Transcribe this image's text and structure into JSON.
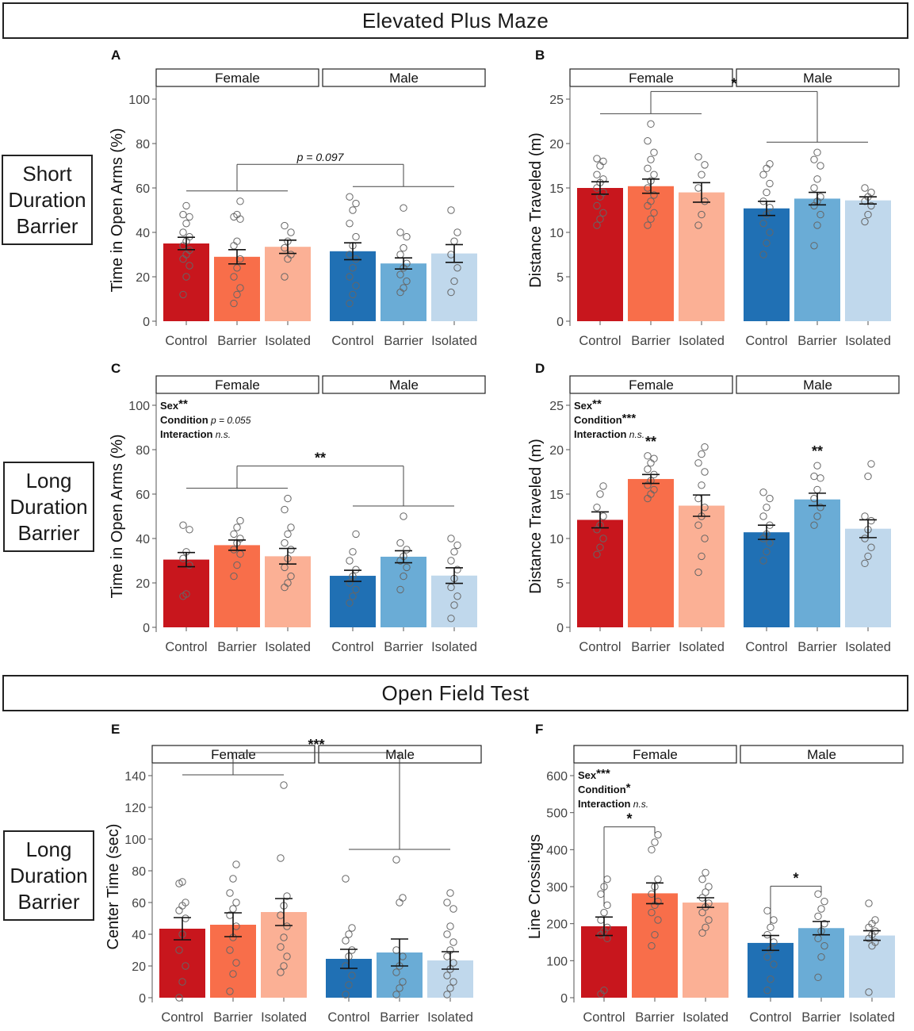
{
  "sections": [
    {
      "title": "Elevated Plus Maze"
    },
    {
      "title": "Open Field Test"
    }
  ],
  "row_labels": [
    [
      "Short",
      "Duration",
      "Barrier"
    ],
    [
      "Long",
      "Duration",
      "Barrier"
    ],
    [
      "Long",
      "Duration",
      "Barrier"
    ]
  ],
  "colors": {
    "Female": [
      "#c8161d",
      "#f86e4a",
      "#fbb095"
    ],
    "Male": [
      "#2070b4",
      "#6aacd6",
      "#c0d8ec"
    ]
  },
  "chart_data": [
    {
      "id": "A",
      "type": "bar",
      "panel_label": "A",
      "facets": [
        "Female",
        "Male"
      ],
      "categories": [
        "Control",
        "Barrier",
        "Isolated"
      ],
      "ylabel": "Time in Open Arms (%)",
      "ylim": [
        0,
        100
      ],
      "yticks": [
        0,
        20,
        40,
        60,
        80,
        100
      ],
      "series": [
        {
          "name": "Female",
          "values": [
            35,
            29,
            33.5
          ],
          "sem": [
            2.8,
            3.2,
            3
          ],
          "points": [
            [
              12,
              20,
              25,
              28,
              30,
              32,
              34,
              36,
              38,
              40,
              44,
              47,
              48,
              52
            ],
            [
              8,
              12,
              15,
              20,
              24,
              28,
              34,
              36,
              46,
              47,
              48,
              54
            ],
            [
              20,
              28,
              30,
              33,
              36,
              40,
              43
            ]
          ]
        },
        {
          "name": "Male",
          "values": [
            31.5,
            26,
            30.5
          ],
          "sem": [
            3.8,
            2.5,
            4
          ],
          "points": [
            [
              8,
              12,
              16,
              20,
              24,
              28,
              30,
              34,
              38,
              44,
              50,
              53,
              56
            ],
            [
              13,
              15,
              18,
              21,
              24,
              26,
              30,
              33,
              38,
              40,
              51
            ],
            [
              13,
              18,
              24,
              30,
              36,
              40,
              50
            ]
          ]
        }
      ],
      "comparisons": [
        {
          "type": "group",
          "left_group": "Female",
          "right_group": "Male",
          "label": "p = 0.097",
          "italic": true
        }
      ],
      "stats_text": []
    },
    {
      "id": "B",
      "type": "bar",
      "panel_label": "B",
      "facets": [
        "Female",
        "Male"
      ],
      "categories": [
        "Control",
        "Barrier",
        "Isolated"
      ],
      "ylabel": "Distance Traveled (m)",
      "ylim": [
        0,
        25
      ],
      "yticks": [
        0,
        5,
        10,
        15,
        20,
        25
      ],
      "series": [
        {
          "name": "Female",
          "values": [
            15,
            15.2,
            14.5
          ],
          "sem": [
            0.7,
            0.8,
            1.1
          ],
          "points": [
            [
              10.8,
              11.5,
              12.2,
              13,
              14,
              14.5,
              15,
              15.6,
              16,
              16.5,
              17.5,
              18,
              18.3
            ],
            [
              10.8,
              11.5,
              12.2,
              13,
              13.5,
              14.2,
              15,
              15.8,
              16.5,
              17.2,
              18.2,
              19,
              20.3,
              22.2
            ],
            [
              10.8,
              12,
              13.5,
              15,
              16.5,
              17.6,
              18.5
            ]
          ]
        },
        {
          "name": "Male",
          "values": [
            12.7,
            13.8,
            13.6
          ],
          "sem": [
            0.8,
            0.7,
            0.4
          ],
          "points": [
            [
              7.5,
              8.8,
              10,
              11,
              12,
              12.8,
              13.5,
              14.5,
              15.5,
              16.5,
              17.2,
              17.7
            ],
            [
              8.5,
              10.8,
              12,
              13,
              13.5,
              14,
              15,
              16,
              17.5,
              18.2,
              19
            ],
            [
              11.2,
              12,
              13,
              13.5,
              14,
              14.5,
              15
            ]
          ]
        }
      ],
      "comparisons": [
        {
          "type": "group",
          "left_group": "Female",
          "right_group": "Male",
          "label": "*",
          "italic": false
        }
      ],
      "stats_text": []
    },
    {
      "id": "C",
      "type": "bar",
      "panel_label": "C",
      "facets": [
        "Female",
        "Male"
      ],
      "categories": [
        "Control",
        "Barrier",
        "Isolated"
      ],
      "ylabel": "Time in Open Arms (%)",
      "ylim": [
        0,
        100
      ],
      "yticks": [
        0,
        20,
        40,
        60,
        80,
        100
      ],
      "series": [
        {
          "name": "Female",
          "values": [
            30.5,
            37,
            32
          ],
          "sem": [
            3.2,
            2.3,
            3.5
          ],
          "points": [
            [
              14,
              15,
              28,
              31,
              34,
              44,
              46
            ],
            [
              23,
              28,
              33,
              35,
              38,
              40,
              42,
              45,
              48
            ],
            [
              18,
              20,
              23,
              27,
              31,
              35,
              38,
              42,
              45,
              53,
              58
            ]
          ]
        },
        {
          "name": "Male",
          "values": [
            23.2,
            31.8,
            23.3
          ],
          "sem": [
            2.5,
            2.7,
            3.5
          ],
          "points": [
            [
              11,
              14,
              17,
              20,
              23,
              26,
              30,
              34,
              42
            ],
            [
              17,
              23,
              27,
              30,
              32,
              35,
              38,
              50
            ],
            [
              4,
              10,
              14,
              18,
              22,
              26,
              30,
              34,
              37,
              40
            ]
          ]
        }
      ],
      "comparisons": [
        {
          "type": "group",
          "left_group": "Female",
          "right_group": "Male",
          "label": "**",
          "italic": false
        }
      ],
      "stats_text": [
        {
          "label": "Sex",
          "stars": "**",
          "note": ""
        },
        {
          "label": "Condition",
          "stars": "",
          "note": "p = 0.055"
        },
        {
          "label": "Interaction",
          "stars": "",
          "note": "n.s."
        }
      ]
    },
    {
      "id": "D",
      "type": "bar",
      "panel_label": "D",
      "facets": [
        "Female",
        "Male"
      ],
      "categories": [
        "Control",
        "Barrier",
        "Isolated"
      ],
      "ylabel": "Distance Traveled (m)",
      "ylim": [
        0,
        25
      ],
      "yticks": [
        0,
        5,
        10,
        15,
        20,
        25
      ],
      "series": [
        {
          "name": "Female",
          "values": [
            12.1,
            16.7,
            13.7
          ],
          "sem": [
            0.9,
            0.5,
            1.2
          ],
          "points": [
            [
              8.2,
              9,
              10,
              11,
              11.5,
              12.5,
              13.5,
              15,
              15.9
            ],
            [
              14.5,
              15,
              15.5,
              16,
              16.5,
              17.2,
              17.8,
              18.5,
              19,
              19.3
            ],
            [
              6.2,
              8,
              10,
              11.5,
              12.5,
              13.5,
              14.5,
              16,
              17.5,
              18.5,
              19.5,
              20.3
            ]
          ]
        },
        {
          "name": "Male",
          "values": [
            10.7,
            14.4,
            11.1
          ],
          "sem": [
            0.8,
            0.7,
            1.0
          ],
          "points": [
            [
              7.5,
              8.5,
              9.5,
              10,
              10.5,
              11.5,
              12.5,
              13.5,
              14.5,
              15.2
            ],
            [
              11.5,
              12.5,
              13.5,
              14.5,
              15.5,
              16.8,
              17,
              18.2
            ],
            [
              7.2,
              8,
              9,
              10,
              11,
              12,
              12.5,
              17,
              18.4
            ]
          ]
        }
      ],
      "comparisons": [
        {
          "type": "bar",
          "group": "Female",
          "category": "Barrier",
          "label": "**"
        },
        {
          "type": "bar",
          "group": "Male",
          "category": "Barrier",
          "label": "**"
        }
      ],
      "stats_text": [
        {
          "label": "Sex",
          "stars": "**",
          "note": ""
        },
        {
          "label": "Condition",
          "stars": "***",
          "note": ""
        },
        {
          "label": "Interaction",
          "stars": "",
          "note": "n.s."
        }
      ]
    },
    {
      "id": "E",
      "type": "bar",
      "panel_label": "E",
      "facets": [
        "Female",
        "Male"
      ],
      "categories": [
        "Control",
        "Barrier",
        "Isolated"
      ],
      "ylabel": "Center Time (sec)",
      "ylim": [
        0,
        140
      ],
      "yticks": [
        0,
        20,
        40,
        60,
        80,
        100,
        120,
        140
      ],
      "series": [
        {
          "name": "Female",
          "values": [
            43.5,
            46,
            54
          ],
          "sem": [
            7,
            7.5,
            8.5
          ],
          "points": [
            [
              0,
              10,
              20,
              30,
              40,
              50,
              55,
              58,
              60,
              72,
              73
            ],
            [
              4,
              15,
              22,
              30,
              38,
              45,
              52,
              56,
              60,
              66,
              75,
              84
            ],
            [
              16,
              20,
              26,
              32,
              38,
              45,
              52,
              58,
              64,
              88,
              134
            ]
          ]
        },
        {
          "name": "Male",
          "values": [
            24.5,
            28.5,
            23.5
          ],
          "sem": [
            6,
            8.5,
            5.5
          ],
          "points": [
            [
              2,
              8,
              14,
              20,
              26,
              30,
              36,
              40,
              44,
              75
            ],
            [
              2,
              6,
              10,
              16,
              20,
              26,
              30,
              60,
              63,
              87
            ],
            [
              2,
              6,
              10,
              14,
              18,
              22,
              26,
              30,
              35,
              40,
              45,
              56,
              60,
              66
            ]
          ]
        }
      ],
      "comparisons": [
        {
          "type": "group",
          "left_group": "Female",
          "right_group": "Male",
          "label": "***",
          "italic": false
        }
      ],
      "stats_text": []
    },
    {
      "id": "F",
      "type": "bar",
      "panel_label": "F",
      "facets": [
        "Female",
        "Male"
      ],
      "categories": [
        "Control",
        "Barrier",
        "Isolated"
      ],
      "ylabel": "Line Crossings",
      "ylim": [
        0,
        600
      ],
      "yticks": [
        0,
        100,
        200,
        300,
        400,
        500,
        600
      ],
      "series": [
        {
          "name": "Female",
          "values": [
            193,
            282,
            257
          ],
          "sem": [
            25,
            28,
            13
          ],
          "points": [
            [
              10,
              20,
              160,
              170,
              180,
              190,
              210,
              230,
              250,
              280,
              300,
              320
            ],
            [
              140,
              170,
              210,
              230,
              250,
              260,
              280,
              300,
              320,
              400,
              420,
              440
            ],
            [
              175,
              190,
              210,
              230,
              245,
              255,
              270,
              285,
              300,
              320,
              338
            ]
          ]
        },
        {
          "name": "Male",
          "values": [
            148,
            188,
            168
          ],
          "sem": [
            20,
            18,
            13
          ],
          "points": [
            [
              20,
              50,
              90,
              110,
              130,
              150,
              170,
              190,
              210,
              235
            ],
            [
              55,
              110,
              140,
              160,
              180,
              200,
              220,
              240,
              260,
              280
            ],
            [
              15,
              140,
              150,
              160,
              170,
              180,
              190,
              200,
              210,
              255
            ]
          ]
        }
      ],
      "comparisons": [
        {
          "type": "pair",
          "group": "Female",
          "from": "Control",
          "to": "Barrier",
          "label": "*"
        },
        {
          "type": "pair",
          "group": "Male",
          "from": "Control",
          "to": "Barrier",
          "label": "*"
        }
      ],
      "stats_text": [
        {
          "label": "Sex",
          "stars": "***",
          "note": ""
        },
        {
          "label": "Condition",
          "stars": "*",
          "note": ""
        },
        {
          "label": "Interaction",
          "stars": "",
          "note": "n.s."
        }
      ]
    }
  ]
}
